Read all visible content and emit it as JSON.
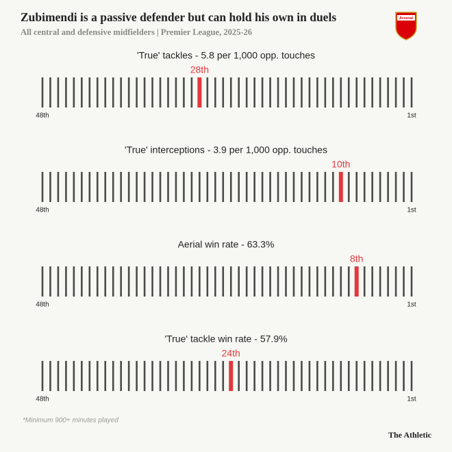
{
  "title": "Zubimendi is a passive defender but can hold his own in duels",
  "subtitle": "All central and defensive midfielders | Premier League, 2025-26",
  "footnote": "*Minimum 900+ minutes played",
  "brand": "The Athletic",
  "logo": "Arsenal",
  "chart_data": [
    {
      "type": "strip",
      "title": "'True' tackles - 5.8 per 1,000 opp. touches",
      "values": [
        28
      ],
      "value_labels": [
        "28th"
      ],
      "color": "#e0393e",
      "bar_color": "#4a4a48",
      "xlim": [
        48,
        1
      ],
      "xticks": [
        {
          "value": 48,
          "label": "48th"
        },
        {
          "value": 1,
          "label": "1st"
        }
      ]
    },
    {
      "type": "strip",
      "title": "'True' interceptions - 3.9 per 1,000 opp. touches",
      "values": [
        10
      ],
      "value_labels": [
        "10th"
      ],
      "color": "#e0393e",
      "bar_color": "#4a4a48",
      "xlim": [
        48,
        1
      ],
      "xticks": [
        {
          "value": 48,
          "label": "48th"
        },
        {
          "value": 1,
          "label": "1st"
        }
      ]
    },
    {
      "type": "strip",
      "title": "Aerial win rate - 63.3%",
      "values": [
        8
      ],
      "value_labels": [
        "8th"
      ],
      "color": "#e0393e",
      "bar_color": "#4a4a48",
      "xlim": [
        48,
        1
      ],
      "xticks": [
        {
          "value": 48,
          "label": "48th"
        },
        {
          "value": 1,
          "label": "1st"
        }
      ]
    },
    {
      "type": "strip",
      "title": "'True' tackle win rate - 57.9%",
      "values": [
        24
      ],
      "value_labels": [
        "24th"
      ],
      "color": "#e0393e",
      "bar_color": "#4a4a48",
      "xlim": [
        48,
        1
      ],
      "xticks": [
        {
          "value": 48,
          "label": "48th"
        },
        {
          "value": 1,
          "label": "1st"
        }
      ]
    }
  ]
}
